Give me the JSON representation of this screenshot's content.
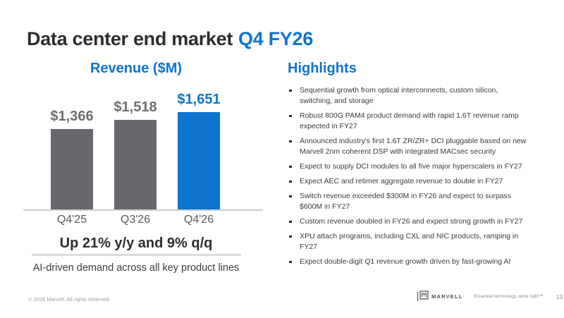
{
  "slide": {
    "title_main": "Data center end market",
    "title_accent": "Q4 FY26"
  },
  "chart_data": {
    "type": "bar",
    "title": "Revenue ($M)",
    "categories": [
      "Q4'25",
      "Q3'26",
      "Q4'26"
    ],
    "values": [
      1366,
      1518,
      1651
    ],
    "value_labels": [
      "$1,366",
      "$1,518",
      "$1,651"
    ],
    "bar_colors": [
      "#66686B",
      "#66686B",
      "#0E74CE"
    ],
    "label_colors": [
      "#6D6E71",
      "#6D6E71",
      "#0E74CE"
    ],
    "ylim": [
      0,
      1700
    ],
    "grid": false,
    "legend": "none",
    "annotation_bold": "Up 21% y/y and 9% q/q",
    "annotation": "AI-driven demand across all key product lines"
  },
  "highlights": {
    "heading": "Highlights",
    "items": [
      "Sequential growth from optical interconnects, custom silicon,\nswitching, and storage",
      "Robust 800G PAM4 product demand with rapid 1.6T revenue ramp\nexpected in FY27",
      "Announced industry's first 1.6T ZR/ZR+ DCI pluggable based on new\nMarvell 2nm coherent DSP with integrated MACsec security",
      "Expect to supply DCI modules to all five major hyperscalers in FY27",
      "Expect AEC and retimer aggregate revenue to double in FY27",
      "Switch revenue exceeded $300M in FY26 and expect to surpass\n$600M in FY27",
      "Custom revenue doubled in FY26 and expect strong growth in FY27",
      "XPU attach programs, including CXL and NIC products, ramping in\nFY27",
      "Expect double-digit Q1 revenue growth driven by fast-growing AI"
    ]
  },
  "footer": {
    "copyright": "© 2026 Marvell. All rights reserved.",
    "brand": "MARVELL",
    "tagline": "Essential technology, done right™",
    "page_number": "13"
  },
  "colors": {
    "accent_blue": "#0E74CE",
    "bar_gray": "#66686B",
    "text_dark": "#2D2D2F",
    "axis_gray": "#CBCCCD"
  }
}
